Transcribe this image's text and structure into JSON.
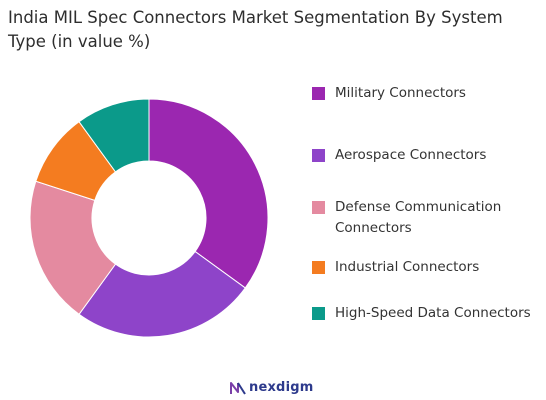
{
  "chart_data": {
    "type": "pie",
    "title": "India MIL Spec Connectors Market Segmentation By System Type (in value %)",
    "variant": "donut",
    "legend_position": "right",
    "categories": [
      "Military Connectors",
      "Aerospace Connectors",
      "Defense Communication Connectors",
      "Industrial Connectors",
      "High-Speed Data Connectors"
    ],
    "values": [
      35,
      25,
      20,
      10,
      10
    ],
    "colors": [
      "#9b27b0",
      "#8e44c9",
      "#e48aa0",
      "#f47c20",
      "#0b9a8a"
    ]
  },
  "brand": {
    "name": "nexdigm"
  }
}
